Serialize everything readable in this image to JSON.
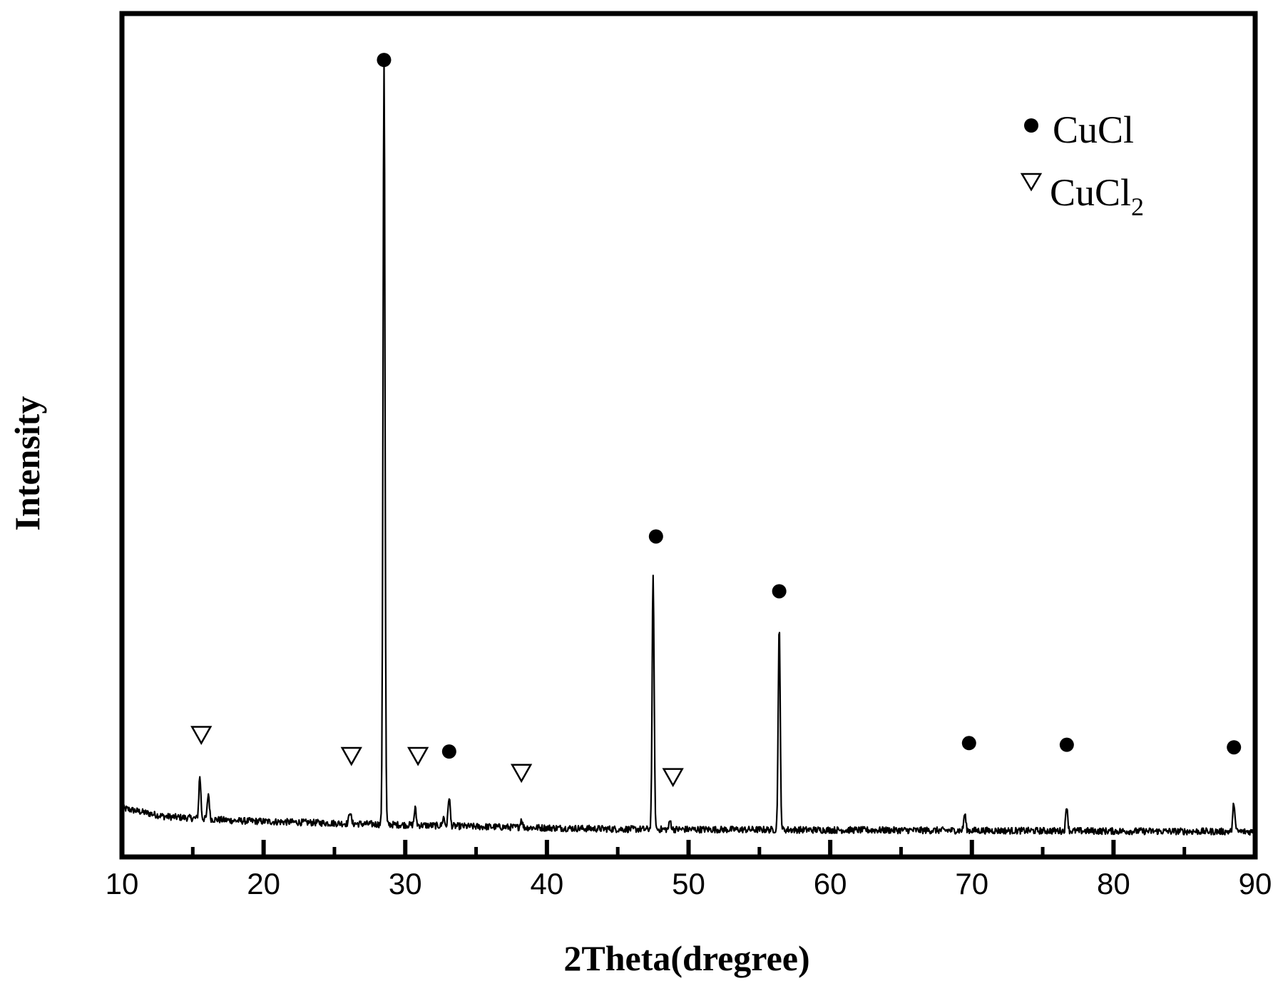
{
  "chart_data": {
    "type": "line",
    "xlabel": "2Theta(dregree)",
    "ylabel": "Intensity",
    "xlim": [
      10,
      90
    ],
    "x_ticks": [
      "10",
      "20",
      "30",
      "40",
      "50",
      "60",
      "70",
      "80",
      "90"
    ],
    "y_ticks_shown": false,
    "grid": false,
    "legend_position": "top-right",
    "legend": [
      {
        "marker": "filled-circle",
        "label": "CuCl",
        "label_main": "CuCl",
        "label_sub": ""
      },
      {
        "marker": "open-triangle-down",
        "label": "CuCl2",
        "label_main": "CuCl",
        "label_sub": "2"
      }
    ],
    "series": [
      {
        "baseline": [
          [
            10,
            0.058
          ],
          [
            13,
            0.048
          ],
          [
            18,
            0.043
          ],
          [
            25,
            0.04
          ],
          [
            35,
            0.036
          ],
          [
            45,
            0.033
          ],
          [
            60,
            0.032
          ],
          [
            75,
            0.031
          ],
          [
            90,
            0.03
          ]
        ],
        "peaks": [
          {
            "x": 15.5,
            "height": 0.05,
            "phase": "CuCl2"
          },
          {
            "x": 16.1,
            "height": 0.03,
            "phase": "CuCl2"
          },
          {
            "x": 26.1,
            "height": 0.015,
            "phase": "CuCl2"
          },
          {
            "x": 28.5,
            "height": 0.91,
            "phase": "CuCl"
          },
          {
            "x": 30.7,
            "height": 0.02,
            "phase": "CuCl2"
          },
          {
            "x": 32.7,
            "height": 0.01,
            "phase": "CuCl"
          },
          {
            "x": 33.1,
            "height": 0.035,
            "phase": "CuCl"
          },
          {
            "x": 38.2,
            "height": 0.01,
            "phase": "CuCl2"
          },
          {
            "x": 47.5,
            "height": 0.3,
            "phase": "CuCl"
          },
          {
            "x": 48.7,
            "height": 0.01,
            "phase": "CuCl2"
          },
          {
            "x": 56.4,
            "height": 0.24,
            "phase": "CuCl"
          },
          {
            "x": 69.5,
            "height": 0.02,
            "phase": "CuCl"
          },
          {
            "x": 76.7,
            "height": 0.03,
            "phase": "CuCl"
          },
          {
            "x": 88.5,
            "height": 0.035,
            "phase": "CuCl"
          }
        ]
      }
    ],
    "annotations": [
      {
        "marker": "open-triangle-down",
        "phase": "CuCl2",
        "x": 15.6,
        "y": 0.145
      },
      {
        "marker": "open-triangle-down",
        "phase": "CuCl2",
        "x": 26.2,
        "y": 0.12
      },
      {
        "marker": "open-triangle-down",
        "phase": "CuCl2",
        "x": 30.9,
        "y": 0.12
      },
      {
        "marker": "filled-circle",
        "phase": "CuCl",
        "x": 33.1,
        "y": 0.125
      },
      {
        "marker": "open-triangle-down",
        "phase": "CuCl2",
        "x": 38.2,
        "y": 0.1
      },
      {
        "marker": "filled-circle",
        "phase": "CuCl",
        "x": 28.5,
        "y": 0.945
      },
      {
        "marker": "filled-circle",
        "phase": "CuCl",
        "x": 47.7,
        "y": 0.38
      },
      {
        "marker": "open-triangle-down",
        "phase": "CuCl2",
        "x": 48.9,
        "y": 0.095
      },
      {
        "marker": "filled-circle",
        "phase": "CuCl",
        "x": 56.4,
        "y": 0.315
      },
      {
        "marker": "filled-circle",
        "phase": "CuCl",
        "x": 69.8,
        "y": 0.135
      },
      {
        "marker": "filled-circle",
        "phase": "CuCl",
        "x": 76.7,
        "y": 0.133
      },
      {
        "marker": "filled-circle",
        "phase": "CuCl",
        "x": 88.5,
        "y": 0.13
      }
    ],
    "colors": {
      "line": "#000000",
      "frame": "#000000",
      "background": "#ffffff"
    }
  }
}
